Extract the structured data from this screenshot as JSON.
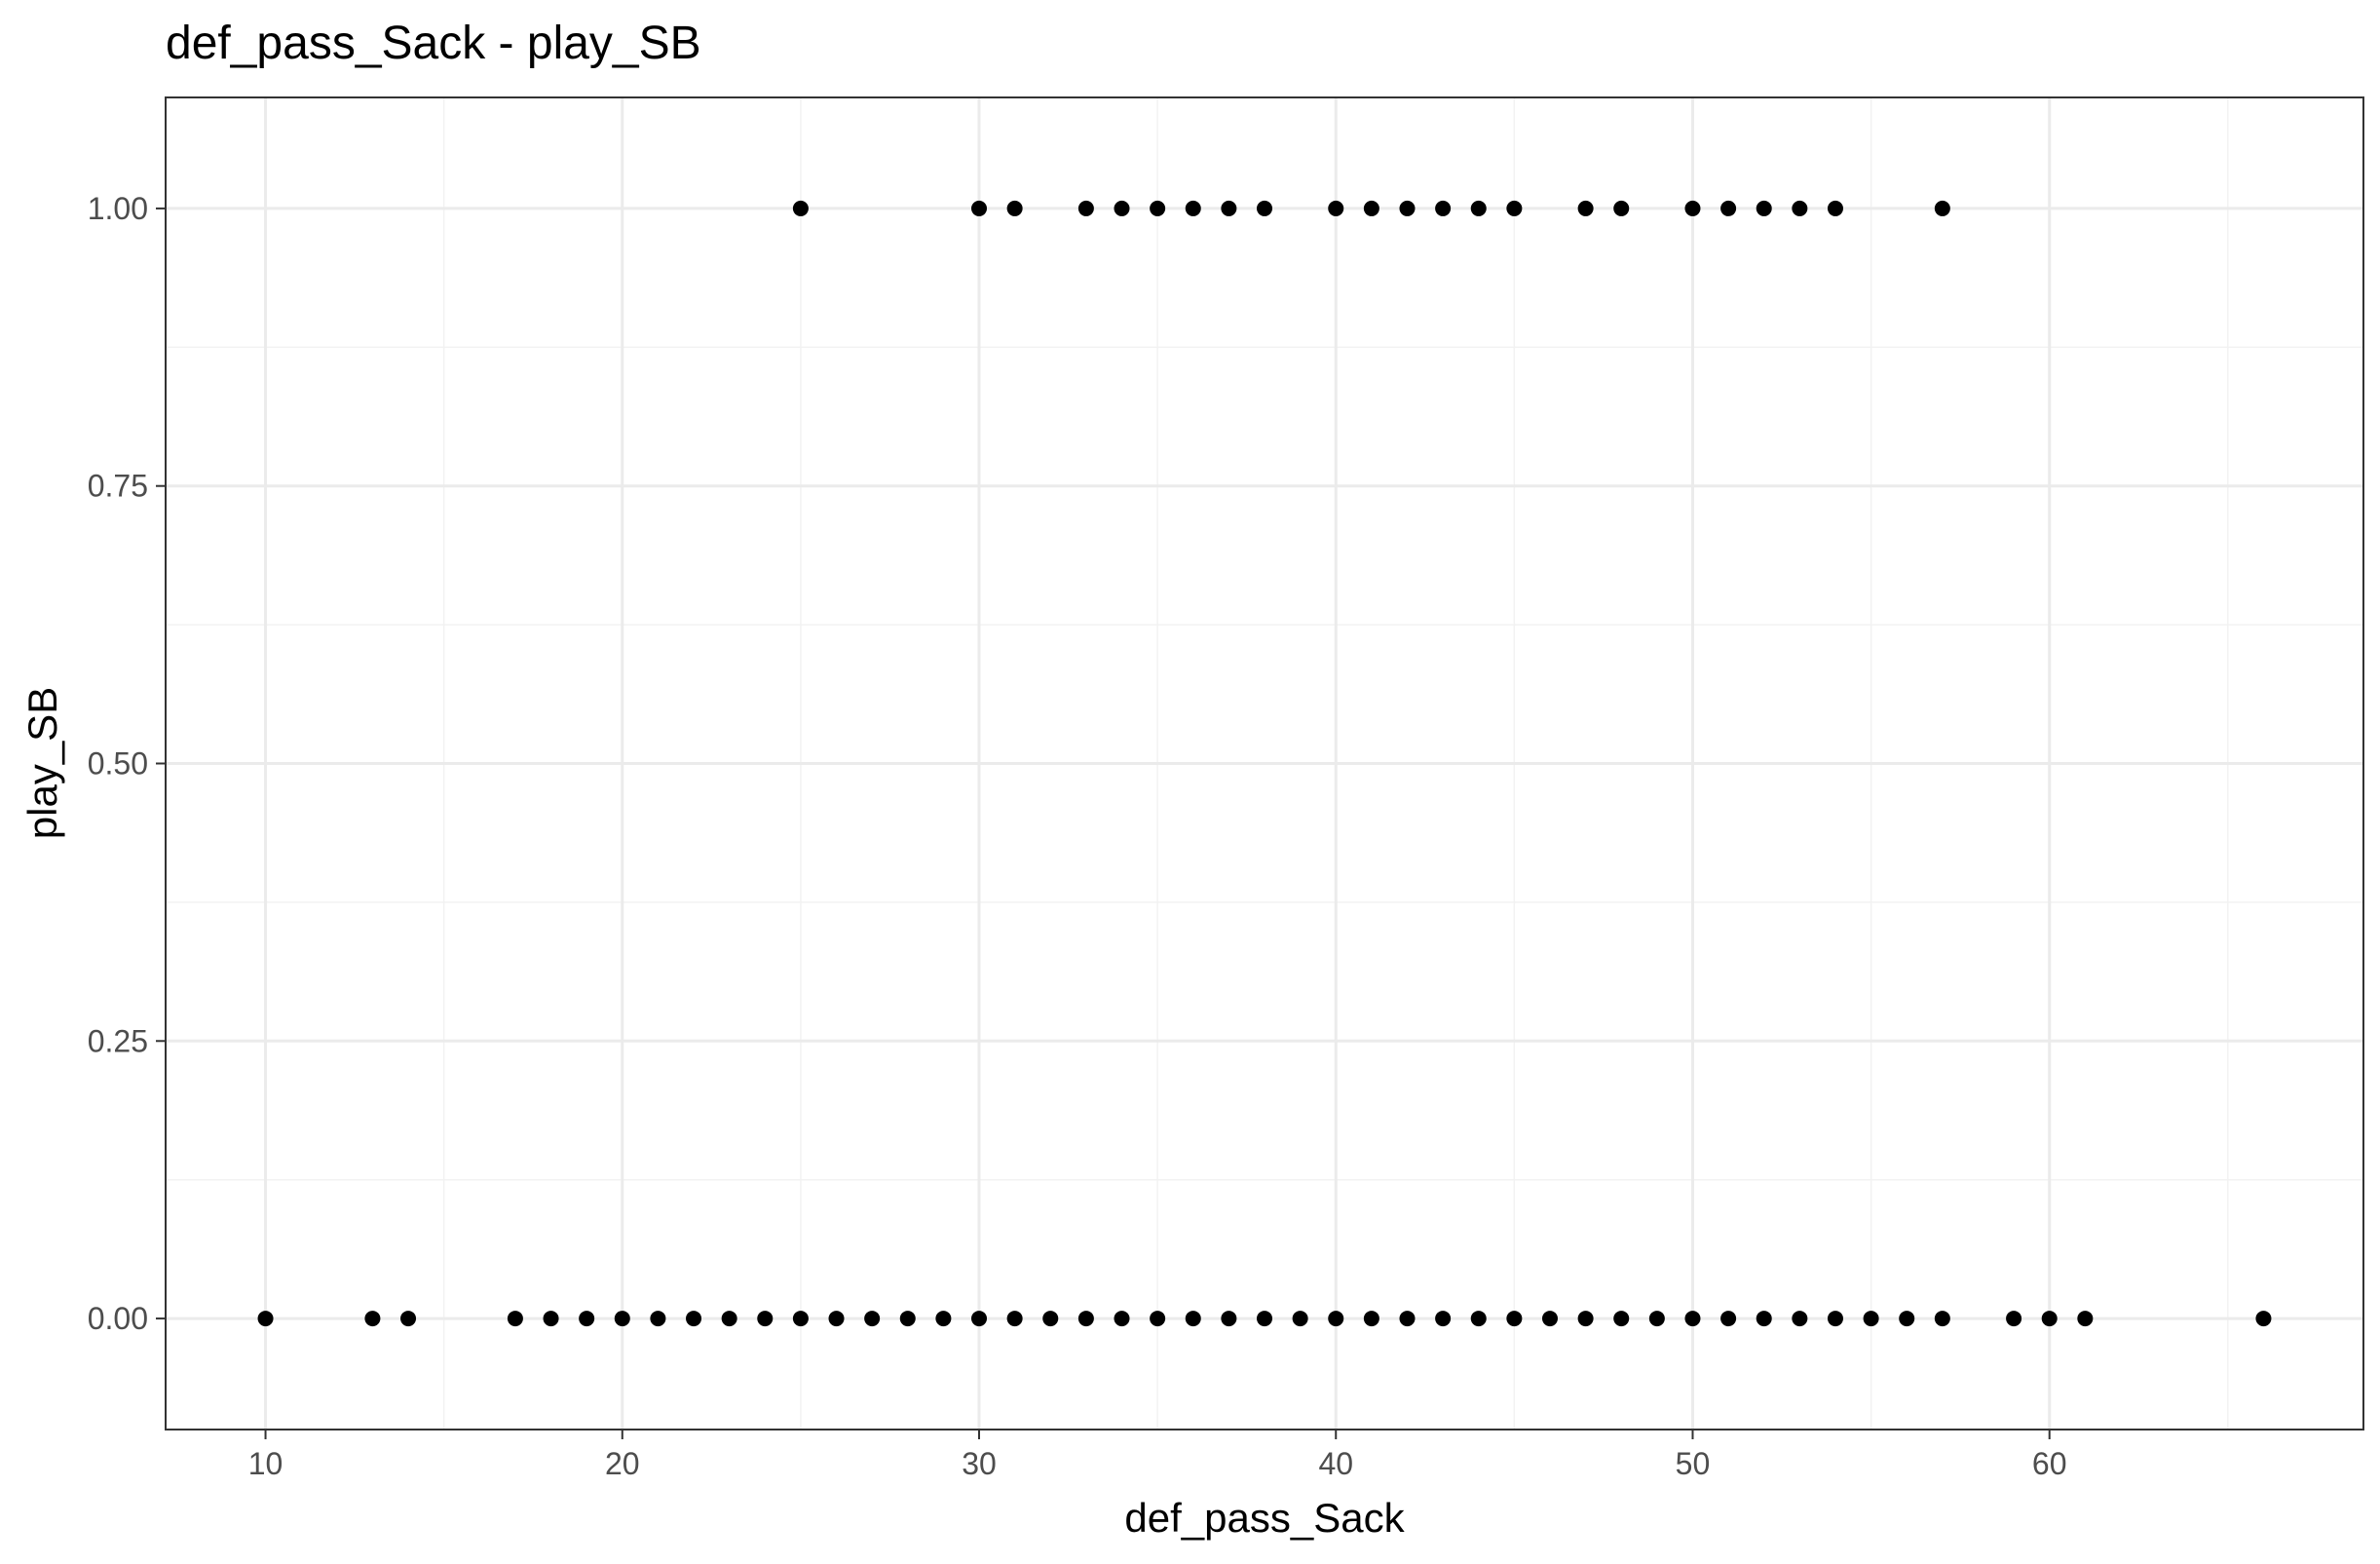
{
  "chart_data": {
    "type": "scatter",
    "title": "def_pass_Sack - play_SB",
    "xlabel": "def_pass_Sack",
    "ylabel": "play_SB",
    "xlim": [
      7.2,
      68.8
    ],
    "ylim": [
      -0.1,
      1.1
    ],
    "x_ticks": [
      10,
      20,
      30,
      40,
      50,
      60
    ],
    "x_tick_labels": [
      "10",
      "20",
      "30",
      "40",
      "50",
      "60"
    ],
    "y_ticks": [
      0,
      0.25,
      0.5,
      0.75,
      1
    ],
    "y_tick_labels": [
      "0.00",
      "0.25",
      "0.50",
      "0.75",
      "1.00"
    ],
    "grid": true,
    "theme": "bw",
    "point_color": "#000000",
    "series": [
      {
        "points": [
          [
            25,
            1
          ],
          [
            30,
            1
          ],
          [
            31,
            1
          ],
          [
            33,
            1
          ],
          [
            34,
            1
          ],
          [
            35,
            1
          ],
          [
            36,
            1
          ],
          [
            37,
            1
          ],
          [
            38,
            1
          ],
          [
            40,
            1
          ],
          [
            41,
            1
          ],
          [
            42,
            1
          ],
          [
            43,
            1
          ],
          [
            44,
            1
          ],
          [
            45,
            1
          ],
          [
            47,
            1
          ],
          [
            48,
            1
          ],
          [
            50,
            1
          ],
          [
            51,
            1
          ],
          [
            52,
            1
          ],
          [
            53,
            1
          ],
          [
            54,
            1
          ],
          [
            57,
            1
          ],
          [
            10,
            0
          ],
          [
            13,
            0
          ],
          [
            14,
            0
          ],
          [
            17,
            0
          ],
          [
            18,
            0
          ],
          [
            19,
            0
          ],
          [
            20,
            0
          ],
          [
            21,
            0
          ],
          [
            22,
            0
          ],
          [
            23,
            0
          ],
          [
            24,
            0
          ],
          [
            25,
            0
          ],
          [
            26,
            0
          ],
          [
            27,
            0
          ],
          [
            28,
            0
          ],
          [
            29,
            0
          ],
          [
            30,
            0
          ],
          [
            31,
            0
          ],
          [
            32,
            0
          ],
          [
            33,
            0
          ],
          [
            34,
            0
          ],
          [
            35,
            0
          ],
          [
            36,
            0
          ],
          [
            37,
            0
          ],
          [
            38,
            0
          ],
          [
            39,
            0
          ],
          [
            40,
            0
          ],
          [
            41,
            0
          ],
          [
            42,
            0
          ],
          [
            43,
            0
          ],
          [
            44,
            0
          ],
          [
            45,
            0
          ],
          [
            46,
            0
          ],
          [
            47,
            0
          ],
          [
            48,
            0
          ],
          [
            49,
            0
          ],
          [
            50,
            0
          ],
          [
            51,
            0
          ],
          [
            52,
            0
          ],
          [
            53,
            0
          ],
          [
            54,
            0
          ],
          [
            55,
            0
          ],
          [
            56,
            0
          ],
          [
            57,
            0
          ],
          [
            59,
            0
          ],
          [
            60,
            0
          ],
          [
            61,
            0
          ],
          [
            66,
            0
          ]
        ]
      }
    ]
  }
}
